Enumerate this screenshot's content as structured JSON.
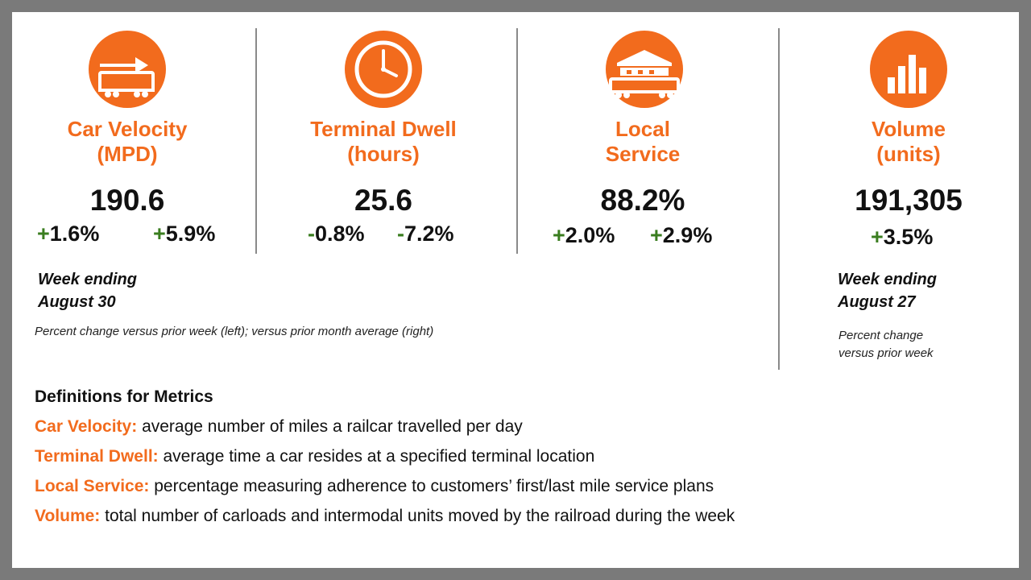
{
  "metrics": [
    {
      "icon": "railcar-arrow-icon",
      "title_line1": "Car Velocity",
      "title_line2": "(MPD)",
      "value": "190.6",
      "change1_sign": "+",
      "change1": "1.6%",
      "change2_sign": "+",
      "change2": "5.9%"
    },
    {
      "icon": "clock-icon",
      "title_line1": "Terminal Dwell",
      "title_line2": "(hours)",
      "value": "25.6",
      "change1_sign": "-",
      "change1": "0.8%",
      "change2_sign": "-",
      "change2": "7.2%"
    },
    {
      "icon": "warehouse-railcar-icon",
      "title_line1": "Local",
      "title_line2": "Service",
      "value": "88.2%",
      "change1_sign": "+",
      "change1": "2.0%",
      "change2_sign": "+",
      "change2": "2.9%"
    },
    {
      "icon": "bar-chart-icon",
      "title_line1": "Volume",
      "title_line2": "(units)",
      "value": "191,305",
      "change1_sign": "+",
      "change1": "3.5%"
    }
  ],
  "left_week": {
    "line1": "Week ending",
    "line2": "August 30"
  },
  "left_note": "Percent change versus prior week (left); versus prior month average (right)",
  "right_week": {
    "line1": "Week ending",
    "line2": "August 27"
  },
  "right_note": {
    "line1": "Percent change",
    "line2": "versus prior week"
  },
  "definitions": {
    "heading": "Definitions for Metrics",
    "items": [
      {
        "term": "Car Velocity:",
        "text": " average number of miles a railcar travelled per day"
      },
      {
        "term": "Terminal Dwell:",
        "text": " average time a car resides at a specified terminal location"
      },
      {
        "term": "Local Service:",
        "text": " percentage measuring adherence to customers’ first/last mile service plans"
      },
      {
        "term": "Volume:",
        "text": " total number of carloads and intermodal units moved by the railroad during the week"
      }
    ]
  },
  "colors": {
    "accent": "#f26b1d",
    "positive": "#3a7d1f",
    "divider": "#8a8a8a"
  }
}
